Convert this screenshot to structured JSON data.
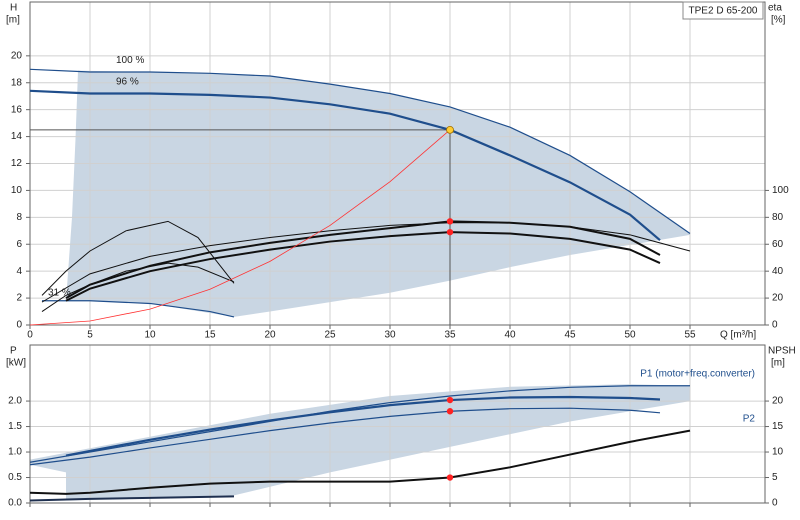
{
  "chart_data": [
    {
      "type": "line",
      "title": "TPE2 D 65-200",
      "ylabel": "H",
      "yunit": "[m]",
      "y2label": "eta",
      "y2unit": "[%]",
      "xlabel": "Q [m³/h]",
      "xlim": [
        0,
        61.25
      ],
      "ylim": [
        0,
        24
      ],
      "y2lim": [
        0,
        240
      ],
      "xticks": [
        0,
        5,
        10,
        15,
        20,
        25,
        30,
        35,
        40,
        45,
        50,
        55
      ],
      "yticks": [
        0,
        2,
        4,
        6,
        8,
        10,
        12,
        14,
        16,
        18,
        20
      ],
      "y2ticks": [
        0,
        20,
        40,
        60,
        80,
        100
      ],
      "grid": true,
      "xtick_labels": true,
      "region": {
        "color": "#c9d6e3",
        "x": [
          4,
          10,
          15,
          20,
          25,
          30,
          35,
          40,
          45,
          50,
          55,
          55,
          45,
          40,
          35,
          30,
          25,
          20,
          17,
          10,
          5,
          3,
          3.5,
          3.8
        ],
        "y": [
          18.9,
          18.8,
          18.7,
          18.5,
          17.9,
          17.2,
          16.2,
          14.7,
          12.6,
          9.9,
          6.8,
          6.7,
          5.2,
          4.3,
          3.3,
          2.4,
          1.7,
          1.0,
          0.6,
          1.6,
          1.8,
          1.8,
          8,
          14
        ]
      },
      "series": [
        {
          "name": "100 %",
          "color": "#1f4e8c",
          "width": 1.2,
          "x": [
            0,
            5,
            10,
            15,
            20,
            25,
            30,
            35,
            40,
            45,
            50,
            55
          ],
          "values": [
            19,
            18.8,
            18.8,
            18.7,
            18.5,
            17.9,
            17.2,
            16.2,
            14.7,
            12.6,
            9.9,
            6.8
          ]
        },
        {
          "name": "96 %",
          "color": "#1f4e8c",
          "width": 2.2,
          "x": [
            0,
            5,
            10,
            15,
            20,
            25,
            30,
            35,
            40,
            45,
            50,
            52.5
          ],
          "values": [
            17.4,
            17.2,
            17.2,
            17.1,
            16.9,
            16.4,
            15.7,
            14.5,
            12.6,
            10.6,
            8.2,
            6.3
          ]
        },
        {
          "name": "31 %",
          "color": "#1f4e8c",
          "width": 1.2,
          "x": [
            1,
            5,
            10,
            15,
            17
          ],
          "values": [
            1.8,
            1.8,
            1.6,
            1.0,
            0.6
          ]
        },
        {
          "color": "#111111",
          "width": 1,
          "axis": "y2",
          "x": [
            1,
            5,
            10,
            15,
            20,
            25,
            30,
            35,
            40,
            45,
            50,
            55
          ],
          "values": [
            17,
            38,
            51,
            59,
            65,
            70,
            74,
            76,
            76,
            73,
            67,
            55
          ]
        },
        {
          "color": "#111111",
          "width": 2,
          "axis": "y2",
          "x": [
            3,
            5,
            10,
            15,
            20,
            25,
            30,
            35,
            40,
            45,
            50,
            52.5
          ],
          "values": [
            20,
            30,
            44,
            54,
            61,
            67,
            72,
            77,
            76,
            73,
            64,
            52
          ]
        },
        {
          "color": "#111111",
          "width": 2,
          "axis": "y2",
          "x": [
            3,
            5,
            10,
            15,
            20,
            25,
            30,
            35,
            40,
            45,
            50,
            52.5
          ],
          "values": [
            18,
            27,
            40,
            49,
            56,
            62,
            66,
            69,
            68,
            64,
            56,
            46
          ]
        },
        {
          "color": "#111111",
          "width": 1,
          "axis": "y2",
          "x": [
            1,
            3,
            5,
            8,
            11.5,
            14,
            17
          ],
          "values": [
            22,
            40,
            55,
            70,
            77,
            65,
            31
          ]
        },
        {
          "color": "#111111",
          "width": 1,
          "axis": "y2",
          "x": [
            1,
            3,
            5,
            8,
            11.5,
            14,
            17
          ],
          "values": [
            10,
            22,
            30,
            40,
            46,
            43,
            32
          ]
        },
        {
          "color": "#ff3333",
          "width": 0.8,
          "x": [
            0,
            5,
            10,
            15,
            20,
            25,
            30,
            35
          ],
          "values": [
            0,
            0.3,
            1.18,
            2.66,
            4.73,
            7.4,
            10.65,
            14.5
          ]
        }
      ],
      "duty_point": {
        "x": 35,
        "y": 14.5,
        "color": "#ffcc33"
      },
      "points": [
        {
          "x": 35,
          "y": 77,
          "axis": "y2",
          "color": "#ff2222"
        },
        {
          "x": 35,
          "y": 69,
          "axis": "y2",
          "color": "#ff2222"
        }
      ]
    },
    {
      "type": "line",
      "ylabel": "P",
      "yunit": "[kW]",
      "y2label": "NPSH",
      "y2unit": "[m]",
      "xlim": [
        0,
        61.25
      ],
      "ylim": [
        0,
        3.1
      ],
      "y2lim": [
        0,
        31
      ],
      "xticks": [
        0,
        5,
        10,
        15,
        20,
        25,
        30,
        35,
        40,
        45,
        50,
        55
      ],
      "yticks": [
        {
          "value": 0,
          "label": "0.0"
        },
        0.5,
        {
          "value": 1,
          "label": "1.0"
        },
        1.5,
        {
          "value": 2,
          "label": "2.0"
        }
      ],
      "y2ticks": [
        0,
        5,
        10,
        15,
        20
      ],
      "grid": true,
      "xtick_labels": false,
      "region": {
        "color": "#c9d6e3",
        "x": [
          0,
          10,
          20,
          30,
          40,
          50,
          55,
          55,
          45,
          35,
          25,
          17,
          3,
          3,
          0
        ],
        "y": [
          0.85,
          1.3,
          1.75,
          2.1,
          2.28,
          2.33,
          2.3,
          2.0,
          1.6,
          1.1,
          0.6,
          0.15,
          0.05,
          0.6,
          0.75
        ]
      },
      "series": [
        {
          "name": "P1 (motor+freq.converter)",
          "color": "#1f4e8c",
          "width": 1.2,
          "x": [
            0,
            5,
            10,
            15,
            20,
            25,
            30,
            35,
            40,
            45,
            50,
            55
          ],
          "values": [
            0.8,
            1.0,
            1.2,
            1.4,
            1.6,
            1.8,
            1.97,
            2.1,
            2.2,
            2.27,
            2.3,
            2.3
          ]
        },
        {
          "color": "#1f4e8c",
          "width": 2.2,
          "x": [
            3,
            5,
            10,
            15,
            20,
            25,
            30,
            35,
            40,
            45,
            50,
            52.5
          ],
          "values": [
            0.93,
            1.02,
            1.24,
            1.44,
            1.62,
            1.78,
            1.92,
            2.02,
            2.07,
            2.08,
            2.06,
            2.03
          ]
        },
        {
          "name": "P2",
          "color": "#1f4e8c",
          "width": 1.2,
          "x": [
            0,
            5,
            10,
            15,
            20,
            25,
            30,
            35,
            40,
            45,
            50,
            52.5
          ],
          "values": [
            0.75,
            0.9,
            1.08,
            1.25,
            1.42,
            1.57,
            1.7,
            1.8,
            1.85,
            1.86,
            1.82,
            1.77
          ]
        },
        {
          "color": "#111111",
          "width": 2,
          "axis": "y2",
          "x": [
            0,
            3,
            5,
            10,
            15,
            20,
            25,
            30,
            35,
            40,
            45,
            50,
            55
          ],
          "values": [
            2,
            1.8,
            2,
            3,
            3.8,
            4.2,
            4.2,
            4.2,
            5,
            7,
            9.5,
            12,
            14.2
          ]
        },
        {
          "color": "#1f3050",
          "width": 2,
          "x": [
            0,
            5,
            10,
            17
          ],
          "values": [
            0.05,
            0.08,
            0.1,
            0.13
          ]
        }
      ],
      "points": [
        {
          "x": 35,
          "y": 2.02,
          "color": "#ff2222"
        },
        {
          "x": 35,
          "y": 1.8,
          "color": "#ff2222"
        },
        {
          "x": 35,
          "y": 5,
          "axis": "y2",
          "color": "#ff2222"
        }
      ]
    }
  ]
}
